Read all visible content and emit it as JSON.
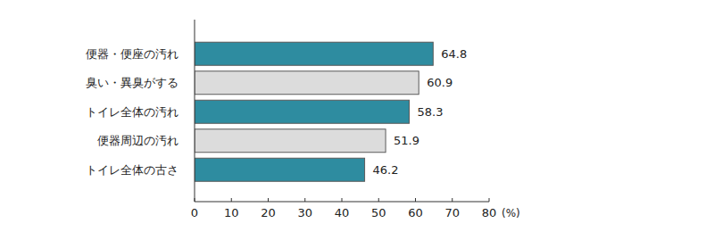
{
  "chart_data": {
    "type": "bar",
    "orientation": "horizontal",
    "categories": [
      "便器・便座の汚れ",
      "臭い・異臭がする",
      "トイレ全体の汚れ",
      "便器周辺の汚れ",
      "トイレ全体の古さ"
    ],
    "values": [
      64.8,
      60.9,
      58.3,
      51.9,
      46.2
    ],
    "colors": [
      "#2e8ca0",
      "#dcdcdc",
      "#2e8ca0",
      "#dcdcdc",
      "#2e8ca0"
    ],
    "x_label": "(%)",
    "xlim": [
      0,
      80
    ],
    "xticks": [
      0,
      10,
      20,
      30,
      40,
      50,
      60,
      70,
      80
    ],
    "grid": false,
    "data_labels": true
  }
}
